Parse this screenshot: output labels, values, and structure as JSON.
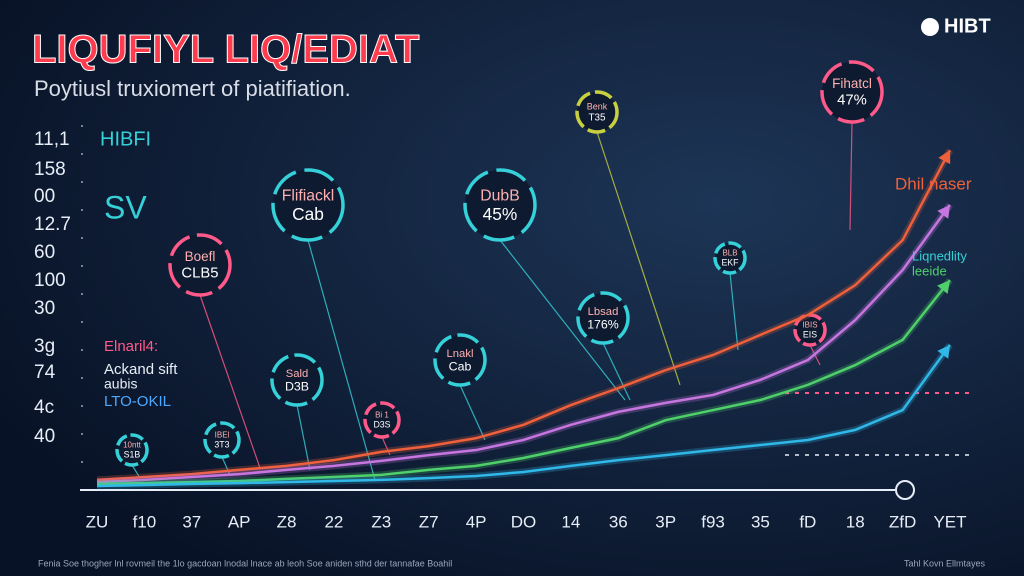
{
  "chart_data": {
    "type": "line",
    "title": "LIQUFIYL LIQ/EDIAT",
    "subtitle": "Poytiusl truxiomert of piatifiation.",
    "brand": "HIBT",
    "y_labels": [
      "11,1",
      "158",
      "00",
      "12.7",
      "60",
      "100",
      "30",
      "3g",
      "74",
      "4c",
      "40"
    ],
    "legend_texts": [
      {
        "text": "HIBFI",
        "color": "#35d0d8"
      },
      {
        "text": "SV",
        "color": "#35d0d8"
      },
      {
        "text": "Elnaril4:",
        "color": "#ff5a8a"
      },
      {
        "text": "Ackand sift",
        "color": "#e8eef8"
      },
      {
        "text": "aubis",
        "color": "#e8eef8"
      },
      {
        "text": "LTO-OKIL",
        "color": "#4fa8ff"
      }
    ],
    "categories": [
      "ZU",
      "f10",
      "37",
      "AP",
      "Z8",
      "22",
      "Z3",
      "Z7",
      "4P",
      "DO",
      "14",
      "36",
      "3P",
      "f93",
      "35",
      "fD",
      "18",
      "ZfD",
      "YET"
    ],
    "ylim": [
      0,
      100
    ],
    "series": [
      {
        "color": "#f0603a",
        "values": [
          2.8,
          3.6,
          4.4,
          5.6,
          6.7,
          8.3,
          10.6,
          12.2,
          14.4,
          18.1,
          23.6,
          28.3,
          33.3,
          37.5,
          43.1,
          48.6,
          56.9,
          69.4,
          94.4
        ]
      },
      {
        "color": "#c776e0",
        "values": [
          2.2,
          2.8,
          3.6,
          4.4,
          5.6,
          6.7,
          8.1,
          9.7,
          11.1,
          13.9,
          18.1,
          21.7,
          24.2,
          26.4,
          30.6,
          36.1,
          47.2,
          61.1,
          79.2
        ]
      },
      {
        "color": "#4fd06a",
        "values": [
          1.7,
          1.9,
          2.2,
          2.5,
          3.1,
          3.6,
          4.2,
          5.6,
          6.7,
          8.9,
          11.7,
          14.4,
          19.4,
          22.2,
          25,
          29.2,
          34.7,
          41.7,
          58.3
        ]
      },
      {
        "color": "#2fb8e8",
        "values": [
          1.1,
          1.4,
          1.7,
          1.9,
          2.2,
          2.5,
          2.8,
          3.3,
          3.9,
          5,
          6.7,
          8.3,
          9.7,
          11.1,
          12.5,
          13.9,
          16.7,
          22.2,
          40.3
        ]
      }
    ],
    "callouts": [
      {
        "title": "Fihatcl",
        "value": "47%"
      },
      {
        "title": "Benk",
        "value": "T35"
      },
      {
        "title": "Flifiackl",
        "value": "Cab"
      },
      {
        "title": "DubB",
        "value": "45%"
      },
      {
        "title": "Boefl",
        "value": "CLB5"
      },
      {
        "title": "BLB",
        "value": "EKF"
      },
      {
        "title": "Lbsad",
        "value": "176%"
      },
      {
        "title": "IBIS",
        "value": "EIS"
      },
      {
        "title": "Lnakl",
        "value": "Cab"
      },
      {
        "title": "Sald",
        "value": "D3B"
      },
      {
        "title": "Bi 1",
        "value": "D3S"
      },
      {
        "title": "10ntt",
        "value": "S1B"
      },
      {
        "title": "IBEl",
        "value": "3T3"
      }
    ],
    "right_labels": [
      {
        "text": "Dhil naser",
        "color": "#f0603a"
      },
      {
        "text": "Liqnedlity",
        "color": "#35d0d8"
      },
      {
        "text": "leeide",
        "color": "#4fd06a"
      }
    ],
    "footer": [
      "Fenia Soe thogher lnl rovmeil the 1lo gacdoan lnodal lnace ab leoh Soe aniden sthd der tannafae Boahil",
      "Tahl Kovn Ellmtayes"
    ]
  }
}
